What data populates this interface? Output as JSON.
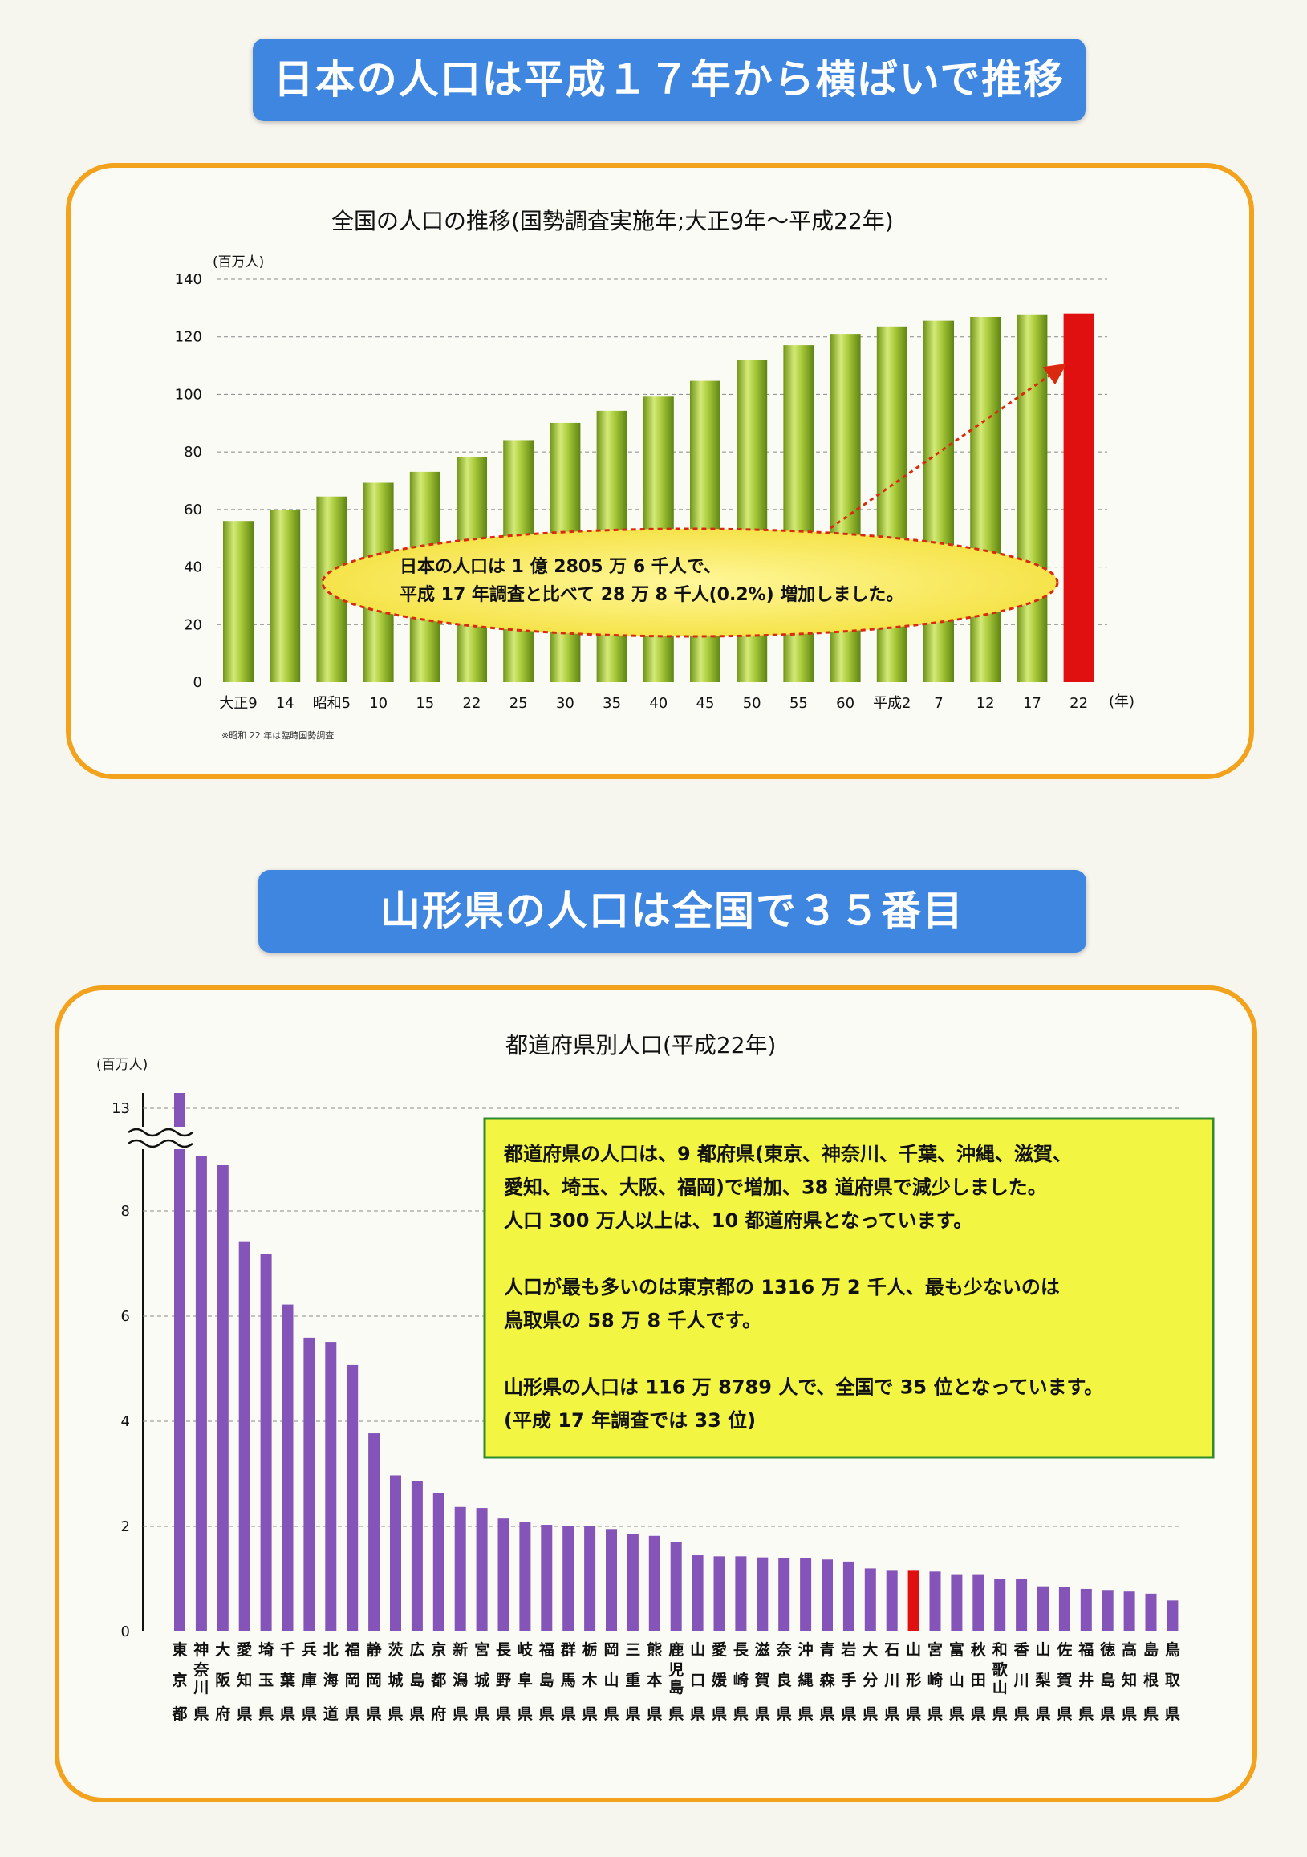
{
  "banners": {
    "top": "日本の人口は平成１７年から横ばいで推移",
    "bottom": "山形県の人口は全国で３５番目"
  },
  "colors": {
    "banner": "#3f86e0",
    "panel_border": "#f2a21c",
    "green_bar": "#9cbf32",
    "red_bar": "#e01010",
    "purple_bar": "#8554b8",
    "callout_fill": "#f4ea3a",
    "box_fill": "#f2f542"
  },
  "chart_data": [
    {
      "type": "bar",
      "title": "全国の人口の推移(国勢調査実施年;大正9年～平成22年)",
      "ylabel": "(百万人)",
      "xlabel": "(年)",
      "ylim": [
        0,
        140
      ],
      "yticks": [
        0,
        20,
        40,
        60,
        80,
        100,
        120,
        140
      ],
      "grid": true,
      "categories": [
        "大正9",
        "14",
        "昭和5",
        "10",
        "15",
        "22",
        "25",
        "30",
        "35",
        "40",
        "45",
        "50",
        "55",
        "60",
        "平成2",
        "7",
        "12",
        "17",
        "22"
      ],
      "values": [
        56,
        59.7,
        64.5,
        69.3,
        73.1,
        78.1,
        84.1,
        90.1,
        94.3,
        99.2,
        104.7,
        111.9,
        117.1,
        121.0,
        123.6,
        125.6,
        126.9,
        127.8,
        128.1
      ],
      "highlight_index": 18,
      "note": "※昭和 22 年は臨時国勢調査",
      "callout": [
        "日本の人口は 1 億 2805 万 6 千人で、",
        "平成 17 年調査と比べて 28 万 8 千人(0.2%)  増加しました。"
      ]
    },
    {
      "type": "bar",
      "title": "都道府県別人口(平成22年)",
      "ylabel": "(百万人)",
      "yticks": [
        "0",
        "2",
        "4",
        "6",
        "8",
        "13"
      ],
      "ylim": [
        0,
        13
      ],
      "axis_break": true,
      "grid": true,
      "categories": [
        "東京都",
        "神奈川県",
        "大阪府",
        "愛知県",
        "埼玉県",
        "千葉県",
        "兵庫県",
        "北海道",
        "福岡県",
        "静岡県",
        "茨城県",
        "広島県",
        "京都府",
        "新潟県",
        "宮城県",
        "長野県",
        "岐阜県",
        "福島県",
        "群馬県",
        "栃木県",
        "岡山県",
        "三重県",
        "熊本県",
        "鹿児島県",
        "山口県",
        "愛媛県",
        "長崎県",
        "滋賀県",
        "奈良県",
        "沖縄県",
        "青森県",
        "岩手県",
        "大分県",
        "石川県",
        "山形県",
        "宮崎県",
        "富山県",
        "秋田県",
        "和歌山県",
        "香川県",
        "山梨県",
        "佐賀県",
        "福井県",
        "徳島県",
        "高知県",
        "島根県",
        "鳥取県"
      ],
      "labels": [
        [
          "東",
          "京",
          "都"
        ],
        [
          "神",
          "奈川",
          "県"
        ],
        [
          "大",
          "阪",
          "府"
        ],
        [
          "愛",
          "知",
          "県"
        ],
        [
          "埼",
          "玉",
          "県"
        ],
        [
          "千",
          "葉",
          "県"
        ],
        [
          "兵",
          "庫",
          "県"
        ],
        [
          "北",
          "海",
          "道"
        ],
        [
          "福",
          "岡",
          "県"
        ],
        [
          "静",
          "岡",
          "県"
        ],
        [
          "茨",
          "城",
          "県"
        ],
        [
          "広",
          "島",
          "県"
        ],
        [
          "京",
          "都",
          "府"
        ],
        [
          "新",
          "潟",
          "県"
        ],
        [
          "宮",
          "城",
          "県"
        ],
        [
          "長",
          "野",
          "県"
        ],
        [
          "岐",
          "阜",
          "県"
        ],
        [
          "福",
          "島",
          "県"
        ],
        [
          "群",
          "馬",
          "県"
        ],
        [
          "栃",
          "木",
          "県"
        ],
        [
          "岡",
          "山",
          "県"
        ],
        [
          "三",
          "重",
          "県"
        ],
        [
          "熊",
          "本",
          "県"
        ],
        [
          "鹿",
          "児島",
          "県"
        ],
        [
          "山",
          "口",
          "県"
        ],
        [
          "愛",
          "媛",
          "県"
        ],
        [
          "長",
          "崎",
          "県"
        ],
        [
          "滋",
          "賀",
          "県"
        ],
        [
          "奈",
          "良",
          "県"
        ],
        [
          "沖",
          "縄",
          "県"
        ],
        [
          "青",
          "森",
          "県"
        ],
        [
          "岩",
          "手",
          "県"
        ],
        [
          "大",
          "分",
          "県"
        ],
        [
          "石",
          "川",
          "県"
        ],
        [
          "山",
          "形",
          "県"
        ],
        [
          "宮",
          "崎",
          "県"
        ],
        [
          "富",
          "山",
          "県"
        ],
        [
          "秋",
          "田",
          "県"
        ],
        [
          "和",
          "歌山",
          "県"
        ],
        [
          "香",
          "川",
          "県"
        ],
        [
          "山",
          "梨",
          "県"
        ],
        [
          "佐",
          "賀",
          "県"
        ],
        [
          "福",
          "井",
          "県"
        ],
        [
          "徳",
          "島",
          "県"
        ],
        [
          "高",
          "知",
          "県"
        ],
        [
          "島",
          "根",
          "県"
        ],
        [
          "鳥",
          "取",
          "県"
        ]
      ],
      "values": [
        13.16,
        9.05,
        8.87,
        7.41,
        7.19,
        6.22,
        5.59,
        5.51,
        5.07,
        3.77,
        2.97,
        2.86,
        2.64,
        2.37,
        2.35,
        2.15,
        2.08,
        2.03,
        2.01,
        2.01,
        1.95,
        1.85,
        1.82,
        1.71,
        1.45,
        1.43,
        1.43,
        1.41,
        1.4,
        1.39,
        1.37,
        1.33,
        1.2,
        1.17,
        1.17,
        1.14,
        1.09,
        1.09,
        1.0,
        1.0,
        0.86,
        0.85,
        0.81,
        0.79,
        0.76,
        0.72,
        0.59
      ],
      "highlight_index": 34,
      "textbox": [
        "都道府県の人口は、9 都府県(東京、神奈川、千葉、沖縄、滋賀、",
        "愛知、埼玉、大阪、福岡)で増加、38 道府県で減少しました。",
        "人口 300 万人以上は、10 都道府県となっています。",
        "",
        "人口が最も多いのは東京都の 1316 万 2 千人、最も少ないのは",
        "鳥取県の 58 万 8 千人です。",
        "",
        "山形県の人口は 116 万 8789 人で、全国で 35 位となっています。",
        "(平成 17 年調査では 33 位)"
      ]
    }
  ]
}
